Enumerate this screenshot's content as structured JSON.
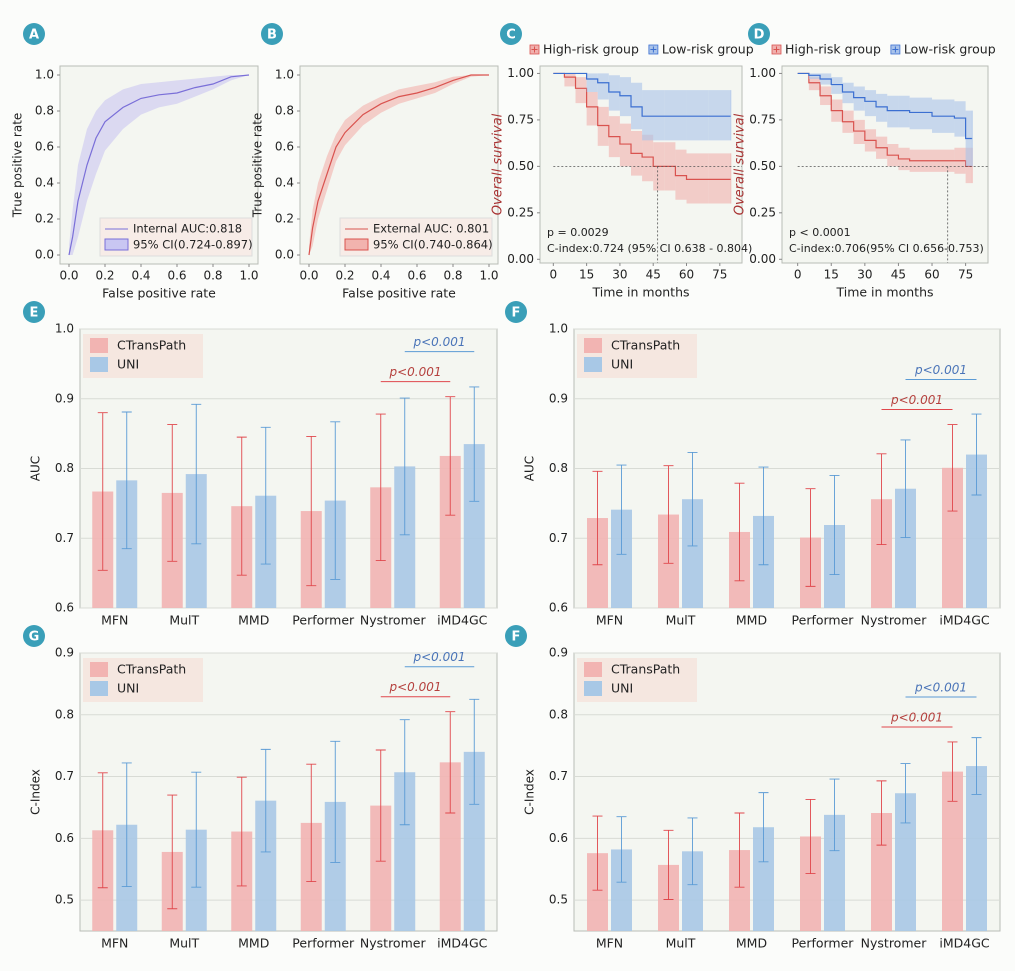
{
  "chart_data": [
    {
      "type": "line",
      "label": "A",
      "xlabel": "False positive rate",
      "ylabel": "True positive rate",
      "xlim": [
        -0.05,
        1.05
      ],
      "ylim": [
        -0.05,
        1.05
      ],
      "xticks": [
        {
          "value": 0,
          "label": "0.0"
        },
        0.2,
        0.4,
        0.6,
        0.8,
        {
          "value": 1,
          "label": "1.0"
        }
      ],
      "yticks": [
        {
          "value": 0,
          "label": "0.0"
        },
        0.2,
        0.4,
        0.6,
        0.8,
        {
          "value": 1,
          "label": "1.0"
        }
      ],
      "legend": "lower right",
      "step": false,
      "series": [
        {
          "name": "Internal AUC:0.818",
          "band_name": "95% CI(0.724-0.897)",
          "color": "#7a6fd8",
          "band_color": "#c9c6f2",
          "x": [
            0,
            0.02,
            0.05,
            0.1,
            0.15,
            0.2,
            0.3,
            0.4,
            0.5,
            0.6,
            0.7,
            0.8,
            0.9,
            1.0
          ],
          "values": [
            0,
            0.1,
            0.3,
            0.5,
            0.65,
            0.74,
            0.82,
            0.87,
            0.89,
            0.9,
            0.93,
            0.95,
            0.99,
            1.0
          ],
          "lower": [
            0,
            0,
            0.1,
            0.3,
            0.45,
            0.58,
            0.7,
            0.78,
            0.82,
            0.84,
            0.88,
            0.92,
            0.97,
            1
          ],
          "upper": [
            0.05,
            0.25,
            0.5,
            0.7,
            0.8,
            0.86,
            0.92,
            0.95,
            0.96,
            0.97,
            0.98,
            0.99,
            1,
            1
          ]
        }
      ]
    },
    {
      "type": "line",
      "label": "B",
      "xlabel": "False positive rate",
      "ylabel": "True positive rate",
      "xlim": [
        -0.05,
        1.05
      ],
      "ylim": [
        -0.05,
        1.05
      ],
      "xticks": [
        {
          "value": 0,
          "label": "0.0"
        },
        0.2,
        0.4,
        0.6,
        0.8,
        {
          "value": 1,
          "label": "1.0"
        }
      ],
      "yticks": [
        {
          "value": 0,
          "label": "0.0"
        },
        0.2,
        0.4,
        0.6,
        0.8,
        {
          "value": 1,
          "label": "1.0"
        }
      ],
      "legend": "lower right",
      "step": false,
      "series": [
        {
          "name": "External AUC: 0.801",
          "band_name": "95% CI(0.740-0.864)",
          "color": "#d9534f",
          "band_color": "#f2b3ae",
          "x": [
            0,
            0.02,
            0.05,
            0.1,
            0.15,
            0.2,
            0.3,
            0.4,
            0.5,
            0.6,
            0.7,
            0.8,
            0.9,
            1.0
          ],
          "values": [
            0,
            0.15,
            0.3,
            0.45,
            0.6,
            0.68,
            0.78,
            0.84,
            0.88,
            0.9,
            0.93,
            0.97,
            1,
            1
          ],
          "lower": [
            0,
            0.05,
            0.2,
            0.36,
            0.52,
            0.61,
            0.72,
            0.79,
            0.84,
            0.87,
            0.9,
            0.95,
            0.99,
            1
          ],
          "upper": [
            0.05,
            0.25,
            0.4,
            0.55,
            0.67,
            0.75,
            0.83,
            0.88,
            0.92,
            0.94,
            0.96,
            0.99,
            1,
            1
          ]
        }
      ]
    },
    {
      "type": "line",
      "label": "C",
      "xlabel": "Time in months",
      "ylabel": "Overall survival",
      "xlim": [
        -6,
        85
      ],
      "ylim": [
        -0.02,
        1.04
      ],
      "xticks": [
        0,
        15,
        30,
        45,
        60,
        75
      ],
      "yticks": [
        {
          "value": 0,
          "label": "0.00"
        },
        0.25,
        {
          "value": 0.5,
          "label": "0.50"
        },
        0.75,
        {
          "value": 1,
          "label": "1.00"
        }
      ],
      "legend": "top",
      "step": true,
      "hline": 0.5,
      "vline": 47,
      "annotations": [
        "p = 0.0029",
        "C-index:0.724 (95% CI 0.638 - 0.804)"
      ],
      "series": [
        {
          "name": "High-risk group",
          "color": "#d9534f",
          "band_color": "#f0b0ad",
          "x": [
            0,
            5,
            10,
            15,
            20,
            25,
            30,
            35,
            40,
            45,
            50,
            55,
            60,
            70,
            80
          ],
          "values": [
            1,
            0.98,
            0.92,
            0.82,
            0.72,
            0.66,
            0.62,
            0.57,
            0.55,
            0.5,
            0.5,
            0.45,
            0.43,
            0.43,
            0.43
          ],
          "lower": [
            1,
            0.93,
            0.84,
            0.72,
            0.61,
            0.55,
            0.5,
            0.45,
            0.42,
            0.37,
            0.37,
            0.32,
            0.3,
            0.3,
            0.3
          ],
          "upper": [
            1,
            1,
            0.98,
            0.9,
            0.82,
            0.77,
            0.73,
            0.69,
            0.67,
            0.63,
            0.63,
            0.59,
            0.57,
            0.57,
            0.57
          ]
        },
        {
          "name": "Low-risk group",
          "color": "#3b6fd1",
          "band_color": "#a9c3ea",
          "x": [
            0,
            5,
            10,
            15,
            20,
            25,
            30,
            35,
            40,
            50,
            60,
            70,
            80
          ],
          "values": [
            1,
            1,
            1,
            0.97,
            0.95,
            0.9,
            0.88,
            0.82,
            0.77,
            0.77,
            0.77,
            0.77,
            0.77
          ],
          "lower": [
            1,
            1,
            1,
            0.9,
            0.86,
            0.8,
            0.77,
            0.7,
            0.64,
            0.64,
            0.64,
            0.64,
            0.64
          ],
          "upper": [
            1,
            1,
            1,
            1,
            1,
            0.99,
            0.98,
            0.95,
            0.91,
            0.91,
            0.91,
            0.91,
            0.91
          ]
        }
      ]
    },
    {
      "type": "line",
      "label": "D",
      "xlabel": "Time in months",
      "ylabel": "Overall survival",
      "xlim": [
        -7,
        85
      ],
      "ylim": [
        -0.02,
        1.04
      ],
      "xticks": [
        0,
        15,
        30,
        45,
        60,
        75
      ],
      "yticks": [
        {
          "value": 0,
          "label": "0.00"
        },
        0.25,
        {
          "value": 0.5,
          "label": "0.50"
        },
        0.75,
        {
          "value": 1,
          "label": "1.00"
        }
      ],
      "legend": "top",
      "step": true,
      "hline": 0.5,
      "vline": 67,
      "annotations": [
        "p < 0.0001",
        "C-index:0.706(95% CI 0.656-0.753)"
      ],
      "series": [
        {
          "name": "High-risk group",
          "color": "#d9534f",
          "band_color": "#f0b0ad",
          "x": [
            0,
            5,
            10,
            15,
            20,
            25,
            30,
            35,
            40,
            45,
            50,
            60,
            70,
            75,
            78
          ],
          "values": [
            1,
            0.95,
            0.88,
            0.8,
            0.74,
            0.69,
            0.64,
            0.6,
            0.56,
            0.54,
            0.53,
            0.53,
            0.53,
            0.5,
            0.5
          ],
          "lower": [
            1,
            0.91,
            0.83,
            0.74,
            0.68,
            0.62,
            0.58,
            0.54,
            0.5,
            0.48,
            0.47,
            0.47,
            0.46,
            0.41,
            0.41
          ],
          "upper": [
            1,
            0.98,
            0.93,
            0.86,
            0.8,
            0.75,
            0.7,
            0.66,
            0.62,
            0.6,
            0.59,
            0.59,
            0.6,
            0.6,
            0.6
          ]
        },
        {
          "name": "Low-risk group",
          "color": "#3b6fd1",
          "band_color": "#a9c3ea",
          "x": [
            0,
            5,
            10,
            15,
            20,
            25,
            30,
            35,
            40,
            45,
            50,
            60,
            70,
            75,
            78
          ],
          "values": [
            1,
            0.99,
            0.97,
            0.94,
            0.9,
            0.87,
            0.85,
            0.82,
            0.8,
            0.8,
            0.79,
            0.77,
            0.76,
            0.65,
            0.65
          ],
          "lower": [
            1,
            0.97,
            0.94,
            0.89,
            0.84,
            0.8,
            0.77,
            0.74,
            0.71,
            0.71,
            0.7,
            0.68,
            0.66,
            0.5,
            0.5
          ],
          "upper": [
            1,
            1,
            1,
            0.98,
            0.95,
            0.93,
            0.91,
            0.89,
            0.88,
            0.88,
            0.87,
            0.86,
            0.85,
            0.8,
            0.8
          ]
        }
      ]
    },
    {
      "type": "bar",
      "label": "E",
      "ylabel": "AUC",
      "grid": true,
      "legend": "upper left",
      "categories": [
        "MFN",
        "MulT",
        "MMD",
        "Performer",
        "Nystromer",
        "iMD4GC"
      ],
      "ylim": [
        0.6,
        1.0
      ],
      "yticks": [
        0.6,
        0.7,
        0.8,
        0.9,
        {
          "value": 1,
          "label": "1.0"
        }
      ],
      "series": [
        {
          "name": "CTransPath",
          "color": "#f2b4b2",
          "error_color": "#e0474c",
          "values": [
            0.767,
            0.765,
            0.746,
            0.739,
            0.773,
            0.818
          ],
          "errors": [
            0.113,
            0.098,
            0.099,
            0.107,
            0.105,
            0.085
          ]
        },
        {
          "name": "UNI",
          "color": "#a8c8e6",
          "error_color": "#5b9bd5",
          "values": [
            0.783,
            0.792,
            0.761,
            0.754,
            0.803,
            0.835
          ],
          "errors": [
            0.098,
            0.1,
            0.098,
            0.113,
            0.098,
            0.082
          ]
        }
      ],
      "annotations": [
        "p<0.001",
        "p<0.001"
      ]
    },
    {
      "type": "bar",
      "label": "F",
      "ylabel": "AUC",
      "grid": true,
      "legend": "upper left",
      "categories": [
        "MFN",
        "MulT",
        "MMD",
        "Performer",
        "Nystromer",
        "iMD4GC"
      ],
      "ylim": [
        0.6,
        1.0
      ],
      "yticks": [
        0.6,
        0.7,
        0.8,
        0.9,
        {
          "value": 1,
          "label": "1.0"
        }
      ],
      "series": [
        {
          "name": "CTransPath",
          "color": "#f2b4b2",
          "error_color": "#e0474c",
          "values": [
            0.729,
            0.734,
            0.709,
            0.701,
            0.756,
            0.801
          ],
          "errors": [
            0.067,
            0.07,
            0.07,
            0.07,
            0.065,
            0.062
          ]
        },
        {
          "name": "UNI",
          "color": "#a8c8e6",
          "error_color": "#5b9bd5",
          "values": [
            0.741,
            0.756,
            0.732,
            0.719,
            0.771,
            0.82
          ],
          "errors": [
            0.064,
            0.067,
            0.07,
            0.071,
            0.07,
            0.058
          ]
        }
      ],
      "annotations": [
        "p<0.001",
        "p<0.001"
      ]
    },
    {
      "type": "bar",
      "label": "G",
      "ylabel": "C-Index",
      "grid": true,
      "legend": "upper left",
      "categories": [
        "MFN",
        "MulT",
        "MMD",
        "Performer",
        "Nystromer",
        "iMD4GC"
      ],
      "ylim": [
        0.45,
        0.9
      ],
      "yticks": [
        0.5,
        0.6,
        0.7,
        0.8,
        0.9
      ],
      "series": [
        {
          "name": "CTransPath",
          "color": "#f2b4b2",
          "error_color": "#e0474c",
          "values": [
            0.613,
            0.578,
            0.611,
            0.625,
            0.653,
            0.723
          ],
          "errors": [
            0.093,
            0.092,
            0.088,
            0.095,
            0.09,
            0.082
          ]
        },
        {
          "name": "UNI",
          "color": "#a8c8e6",
          "error_color": "#5b9bd5",
          "values": [
            0.622,
            0.614,
            0.661,
            0.659,
            0.707,
            0.74
          ],
          "errors": [
            0.1,
            0.093,
            0.083,
            0.098,
            0.085,
            0.085
          ]
        }
      ],
      "annotations": [
        "p<0.001",
        "p<0.001"
      ]
    },
    {
      "type": "bar",
      "label": "F",
      "ylabel": "C-Index",
      "grid": true,
      "legend": "upper left",
      "categories": [
        "MFN",
        "MulT",
        "MMD",
        "Performer",
        "Nystromer",
        "iMD4GC"
      ],
      "ylim": [
        0.45,
        0.9
      ],
      "yticks": [
        0.5,
        0.6,
        0.7,
        0.8,
        0.9
      ],
      "series": [
        {
          "name": "CTransPath",
          "color": "#f2b4b2",
          "error_color": "#e0474c",
          "values": [
            0.576,
            0.557,
            0.581,
            0.603,
            0.641,
            0.708
          ],
          "errors": [
            0.06,
            0.056,
            0.06,
            0.06,
            0.052,
            0.048
          ]
        },
        {
          "name": "UNI",
          "color": "#a8c8e6",
          "error_color": "#5b9bd5",
          "values": [
            0.582,
            0.579,
            0.618,
            0.638,
            0.673,
            0.717
          ],
          "errors": [
            0.053,
            0.054,
            0.056,
            0.058,
            0.048,
            0.046
          ]
        }
      ],
      "annotations": [
        "p<0.001",
        "p<0.001"
      ]
    }
  ]
}
